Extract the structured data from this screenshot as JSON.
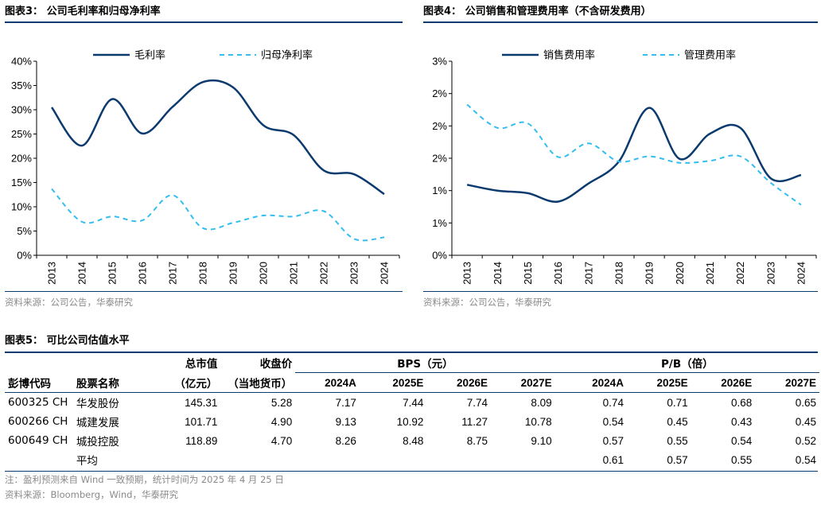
{
  "fig3": {
    "title": "图表3： 公司毛利率和归母净利率",
    "source": "资料来源：公司公告，华泰研究"
  },
  "fig4": {
    "title": "图表4： 公司销售和管理费用率（不含研发费用）",
    "source": "资料来源：公司公告，华泰研究"
  },
  "fig5": {
    "title": "图表5： 可比公司估值水平",
    "note": "注：盈利预测来自 Wind 一致预期，统计时间为 2025 年 4 月 25 日",
    "source": "资料来源：Bloomberg，Wind，华泰研究",
    "headers": {
      "mktcap": "总市值",
      "mktcap_unit": "（亿元）",
      "close": "收盘价",
      "close_unit": "（当地货币）",
      "bps_group": "BPS（元）",
      "pb_group": "P/B（倍）",
      "code": "彭博代码",
      "name": "股票名称",
      "years": [
        "2024A",
        "2025E",
        "2026E",
        "2027E"
      ]
    },
    "rows": [
      {
        "code": "600325 CH",
        "name": "华发股份",
        "mktcap": "145.31",
        "close": "5.28",
        "bps": [
          "7.17",
          "7.44",
          "7.74",
          "8.09"
        ],
        "pb": [
          "0.74",
          "0.71",
          "0.68",
          "0.65"
        ]
      },
      {
        "code": "600266 CH",
        "name": "城建发展",
        "mktcap": "101.71",
        "close": "4.90",
        "bps": [
          "9.13",
          "10.92",
          "11.27",
          "10.78"
        ],
        "pb": [
          "0.54",
          "0.45",
          "0.43",
          "0.45"
        ]
      },
      {
        "code": "600649 CH",
        "name": "城投控股",
        "mktcap": "118.89",
        "close": "4.70",
        "bps": [
          "8.26",
          "8.48",
          "8.75",
          "9.10"
        ],
        "pb": [
          "0.57",
          "0.55",
          "0.54",
          "0.52"
        ]
      }
    ],
    "average": {
      "label": "平均",
      "pb": [
        "0.61",
        "0.57",
        "0.55",
        "0.54"
      ]
    }
  },
  "colors": {
    "solid": "#0b3a6e",
    "dashed": "#33bdf0",
    "rule": "#0b3a6e"
  },
  "chart_data": [
    {
      "type": "line",
      "title": "图表3： 公司毛利率和归母净利率",
      "categories": [
        "2013",
        "2014",
        "2015",
        "2016",
        "2017",
        "2018",
        "2019",
        "2020",
        "2021",
        "2022",
        "2023",
        "2024"
      ],
      "y_tick_labels": [
        "0%",
        "5%",
        "10%",
        "15%",
        "20%",
        "25%",
        "30%",
        "35%",
        "40%"
      ],
      "ylim": [
        0,
        40
      ],
      "legend_position": "top",
      "series": [
        {
          "name": "毛利率",
          "style": "solid",
          "values": [
            30.5,
            22.6,
            32.2,
            25.1,
            30.6,
            35.7,
            34.6,
            26.8,
            24.8,
            17.5,
            16.7,
            12.6
          ]
        },
        {
          "name": "归母净利率",
          "style": "dashed",
          "values": [
            13.7,
            6.9,
            8.0,
            7.2,
            12.4,
            5.6,
            6.7,
            8.2,
            8.0,
            9.1,
            3.4,
            3.7
          ]
        }
      ]
    },
    {
      "type": "line",
      "title": "图表4： 公司销售和管理费用率（不含研发费用）",
      "categories": [
        "2013",
        "2014",
        "2015",
        "2016",
        "2017",
        "2018",
        "2019",
        "2020",
        "2021",
        "2022",
        "2023",
        "2024"
      ],
      "y_tick_labels": [
        "0%",
        "1%",
        "1%",
        "2%",
        "2%",
        "2%",
        "3%"
      ],
      "ylim": [
        0,
        3
      ],
      "legend_position": "top",
      "series": [
        {
          "name": "销售费用率",
          "style": "solid",
          "values": [
            1.09,
            1.0,
            0.96,
            0.83,
            1.11,
            1.45,
            2.28,
            1.49,
            1.88,
            1.97,
            1.19,
            1.24
          ]
        },
        {
          "name": "管理费用率",
          "style": "dashed",
          "values": [
            2.33,
            1.97,
            2.04,
            1.52,
            1.73,
            1.45,
            1.53,
            1.43,
            1.46,
            1.53,
            1.12,
            0.78
          ]
        }
      ]
    }
  ]
}
